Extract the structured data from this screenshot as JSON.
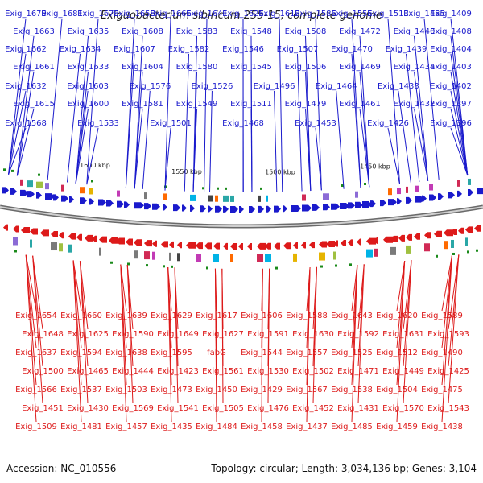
{
  "title": "Exiguobacterium sibiricum 255-15, complete genome",
  "accession": "Accession: NC_010556",
  "summary": "Topology: circular; Length: 3,034,136 bp; Genes: 3,104",
  "colors": {
    "forward": "#1a1acc",
    "reverse": "#dd1a1a",
    "backbone": "#9a9a9a",
    "marker": "#1a8a1a"
  },
  "ticks": [
    {
      "label": "1600 kbp"
    },
    {
      "label": "1550 kbp"
    },
    {
      "label": "1500 kbp"
    },
    {
      "label": "1450 kbp"
    }
  ],
  "forward_genes": [
    "Exig_1679",
    "Exig_1681",
    "Exig_1673",
    "Exig_1658",
    "Exig_1666",
    "Exig_1641",
    "Exig_1626",
    "Exig_1612",
    "Exig_1586",
    "Exig_1555",
    "Exig_1513",
    "Exig_1455",
    "Exig_1409",
    "Exig_1663",
    "Exig_1635",
    "Exig_1608",
    "Exig_1583",
    "Exig_1548",
    "Exig_1508",
    "Exig_1472",
    "Exig_1440",
    "Exig_1408",
    "Exig_1662",
    "Exig_1634",
    "Exig_1607",
    "Exig_1582",
    "Exig_1546",
    "Exig_1507",
    "Exig_1470",
    "Exig_1439",
    "Exig_1404",
    "Exig_1661",
    "Exig_1633",
    "Exig_1604",
    "Exig_1580",
    "Exig_1545",
    "Exig_1506",
    "Exig_1469",
    "Exig_1434",
    "Exig_1403",
    "Exig_1632",
    "Exig_1603",
    "Exig_1576",
    "Exig_1526",
    "Exig_1496",
    "Exig_1464",
    "Exig_1433",
    "Exig_1402",
    "Exig_1615",
    "Exig_1600",
    "Exig_1581",
    "Exig_1549",
    "Exig_1511",
    "Exig_1479",
    "Exig_1461",
    "Exig_1432",
    "Exig_1397",
    "Exig_1568",
    "Exig_1533",
    "Exig_1501",
    "Exig_1468",
    "Exig_1453",
    "Exig_1426",
    "Exig_1396"
  ],
  "reverse_genes": [
    "Exig_1654",
    "Exig_1660",
    "Exig_1639",
    "Exig_1629",
    "Exig_1617",
    "Exig_1606",
    "Exig_1588",
    "Exig_1643",
    "Exig_1620",
    "Exig_1589",
    "Exig_1648",
    "Exig_1625",
    "Exig_1590",
    "Exig_1649",
    "Exig_1627",
    "Exig_1591",
    "Exig_1630",
    "Exig_1592",
    "Exig_1631",
    "Exig_1593",
    "Exig_1637",
    "Exig_1594",
    "Exig_1638",
    "Exig_1595",
    "fabG",
    "Exig_1544",
    "Exig_1557",
    "Exig_1525",
    "Exig_1512",
    "Exig_1490",
    "Exig_1500",
    "Exig_1465",
    "Exig_1444",
    "Exig_1423",
    "Exig_1561",
    "Exig_1530",
    "Exig_1502",
    "Exig_1471",
    "Exig_1449",
    "Exig_1425",
    "Exig_1566",
    "Exig_1537",
    "Exig_1503",
    "Exig_1473",
    "Exig_1450",
    "Exig_1429",
    "Exig_1567",
    "Exig_1538",
    "Exig_1504",
    "Exig_1475",
    "Exig_1451",
    "Exig_1430",
    "Exig_1569",
    "Exig_1541",
    "Exig_1505",
    "Exig_1476",
    "Exig_1452",
    "Exig_1431",
    "Exig_1570",
    "Exig_1543",
    "Exig_1509",
    "Exig_1481",
    "Exig_1457",
    "Exig_1435",
    "Exig_1484",
    "Exig_1458",
    "Exig_1437",
    "Exig_1485",
    "Exig_1459",
    "Exig_1438"
  ]
}
